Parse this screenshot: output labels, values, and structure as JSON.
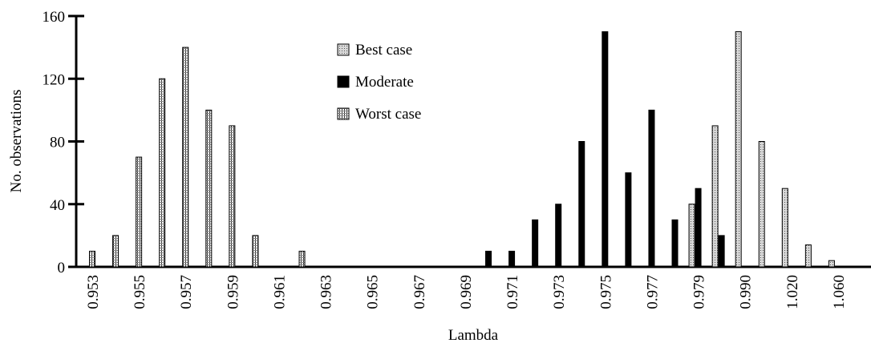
{
  "chart_data": {
    "type": "bar",
    "xlabel": "Lambda",
    "ylabel": "No. observations",
    "categories": [
      "0.953",
      null,
      "0.955",
      null,
      "0.957",
      null,
      "0.959",
      null,
      "0.961",
      null,
      "0.963",
      null,
      "0.965",
      null,
      "0.967",
      null,
      "0.969",
      null,
      "0.971",
      null,
      "0.973",
      null,
      "0.975",
      null,
      "0.977",
      null,
      "0.979",
      null,
      "0.990",
      null,
      "1.020",
      null,
      "1.060"
    ],
    "series": [
      {
        "name": "Best case",
        "color": "#c8c8c8",
        "values": [
          0,
          0,
          0,
          0,
          0,
          0,
          0,
          0,
          0,
          0,
          0,
          0,
          0,
          0,
          0,
          0,
          0,
          0,
          0,
          0,
          0,
          0,
          0,
          0,
          0,
          0,
          40,
          90,
          150,
          80,
          50,
          14,
          4
        ]
      },
      {
        "name": "Moderate",
        "color": "#000000",
        "values": [
          0,
          0,
          0,
          0,
          0,
          0,
          0,
          0,
          0,
          0,
          0,
          0,
          0,
          0,
          0,
          0,
          0,
          10,
          10,
          30,
          40,
          80,
          150,
          60,
          100,
          30,
          50,
          20,
          0,
          0,
          0,
          0,
          0
        ]
      },
      {
        "name": "Worst case",
        "color": "#ffffff",
        "values": [
          10,
          20,
          70,
          120,
          140,
          100,
          90,
          20,
          0,
          10,
          0,
          0,
          0,
          0,
          0,
          0,
          0,
          0,
          0,
          0,
          0,
          0,
          0,
          0,
          0,
          0,
          0,
          0,
          0,
          0,
          0,
          0,
          0
        ]
      }
    ],
    "ylim": [
      0,
      160
    ],
    "yticks": [
      0,
      40,
      80,
      120,
      160
    ],
    "legend": "top-center"
  }
}
